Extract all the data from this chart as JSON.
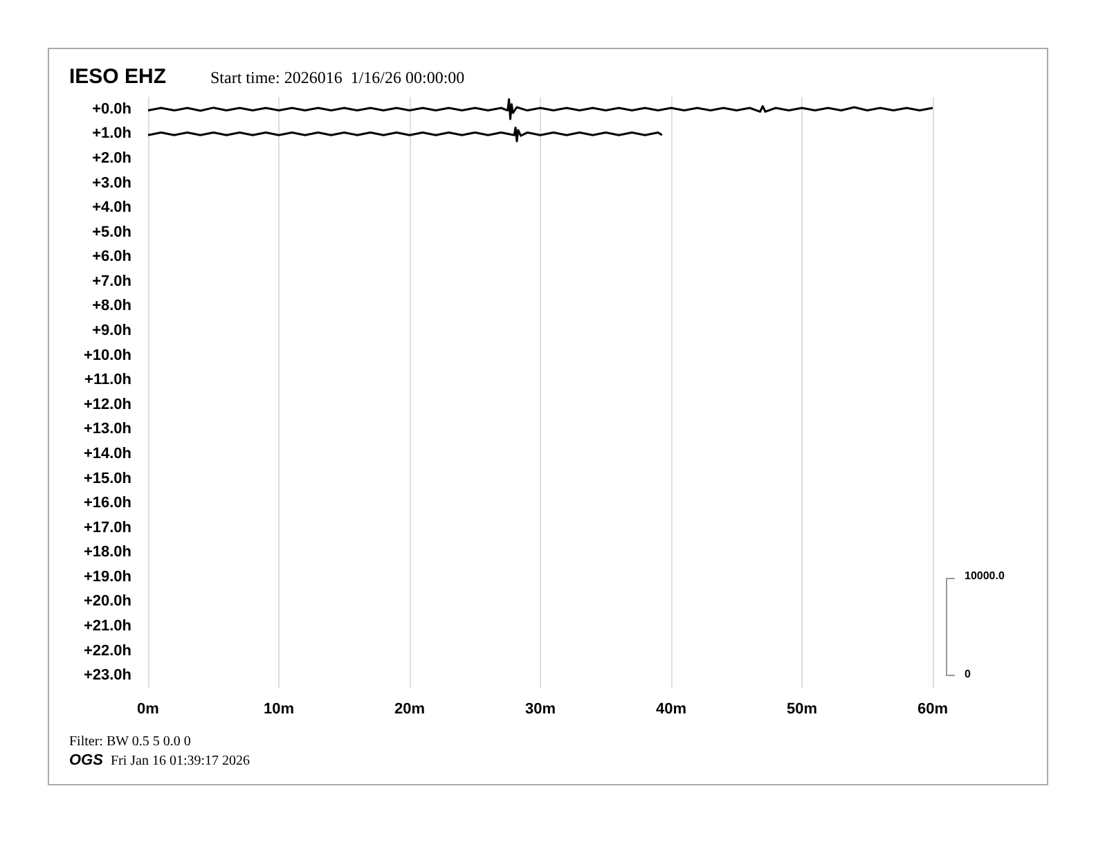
{
  "chart_data": {
    "type": "line",
    "title": "IESO EHZ",
    "subtitle": "Start time: 2026016  1/16/26 00:00:00",
    "xlim": [
      0,
      60
    ],
    "xticks": [
      {
        "value": 0,
        "label": "0m"
      },
      {
        "value": 10,
        "label": "10m"
      },
      {
        "value": 20,
        "label": "20m"
      },
      {
        "value": 30,
        "label": "30m"
      },
      {
        "value": 40,
        "label": "40m"
      },
      {
        "value": 50,
        "label": "50m"
      },
      {
        "value": 60,
        "label": "60m"
      }
    ],
    "ylim": [
      23.5,
      -0.5
    ],
    "yticks": [
      {
        "value": 0,
        "label": "+0.0h"
      },
      {
        "value": 1,
        "label": "+1.0h"
      },
      {
        "value": 2,
        "label": "+2.0h"
      },
      {
        "value": 3,
        "label": "+3.0h"
      },
      {
        "value": 4,
        "label": "+4.0h"
      },
      {
        "value": 5,
        "label": "+5.0h"
      },
      {
        "value": 6,
        "label": "+6.0h"
      },
      {
        "value": 7,
        "label": "+7.0h"
      },
      {
        "value": 8,
        "label": "+8.0h"
      },
      {
        "value": 9,
        "label": "+9.0h"
      },
      {
        "value": 10,
        "label": "+10.0h"
      },
      {
        "value": 11,
        "label": "+11.0h"
      },
      {
        "value": 12,
        "label": "+12.0h"
      },
      {
        "value": 13,
        "label": "+13.0h"
      },
      {
        "value": 14,
        "label": "+14.0h"
      },
      {
        "value": 15,
        "label": "+15.0h"
      },
      {
        "value": 16,
        "label": "+16.0h"
      },
      {
        "value": 17,
        "label": "+17.0h"
      },
      {
        "value": 18,
        "label": "+18.0h"
      },
      {
        "value": 19,
        "label": "+19.0h"
      },
      {
        "value": 20,
        "label": "+20.0h"
      },
      {
        "value": 21,
        "label": "+21.0h"
      },
      {
        "value": 22,
        "label": "+22.0h"
      },
      {
        "value": 23,
        "label": "+23.0h"
      }
    ],
    "series": [
      {
        "color": "#000000",
        "x": [
          0,
          1,
          2,
          3,
          4,
          5,
          6,
          7,
          8,
          9,
          10,
          11,
          12,
          13,
          14,
          15,
          16,
          17,
          18,
          19,
          20,
          21,
          22,
          23,
          24,
          25,
          26,
          27,
          27.5,
          27.6,
          27.7,
          27.8,
          27.9,
          28.2,
          29,
          30,
          31,
          32,
          33,
          34,
          35,
          36,
          37,
          38,
          39,
          40,
          41,
          42,
          43,
          44,
          45,
          46,
          46.8,
          47,
          47.2,
          48,
          49,
          50,
          51,
          52,
          53,
          54,
          55,
          56,
          57,
          58,
          59,
          60
        ],
        "values": [
          0.05,
          -0.05,
          0.05,
          -0.05,
          0.06,
          -0.06,
          0.05,
          -0.05,
          0.05,
          -0.05,
          0.05,
          -0.05,
          0.05,
          -0.05,
          0.05,
          -0.05,
          0.05,
          -0.05,
          0.05,
          -0.05,
          0.05,
          -0.05,
          0.05,
          -0.05,
          0.05,
          -0.05,
          0.05,
          -0.05,
          0.05,
          -0.4,
          0.4,
          -0.2,
          0.15,
          -0.08,
          0.05,
          -0.05,
          0.05,
          -0.05,
          0.05,
          -0.05,
          0.05,
          -0.05,
          0.05,
          -0.05,
          0.05,
          -0.05,
          0.05,
          -0.05,
          0.05,
          -0.05,
          0.05,
          -0.05,
          0.1,
          -0.12,
          0.1,
          -0.05,
          0.05,
          -0.05,
          0.05,
          -0.05,
          0.05,
          -0.08,
          0.05,
          -0.05,
          0.05,
          -0.05,
          0.05,
          -0.05
        ]
      },
      {
        "color": "#000000",
        "x": [
          0,
          1,
          2,
          3,
          4,
          5,
          6,
          7,
          8,
          9,
          10,
          11,
          12,
          13,
          14,
          15,
          16,
          17,
          18,
          19,
          20,
          21,
          22,
          23,
          24,
          25,
          26,
          27,
          28,
          28.1,
          28.2,
          28.3,
          28.5,
          29,
          30,
          31,
          32,
          33,
          34,
          35,
          36,
          37,
          38,
          39,
          39.3
        ],
        "values": [
          1.05,
          0.95,
          1.05,
          0.95,
          1.05,
          0.95,
          1.05,
          0.95,
          1.05,
          0.95,
          1.05,
          0.95,
          1.05,
          0.95,
          1.05,
          0.95,
          1.05,
          0.95,
          1.05,
          0.95,
          1.05,
          0.95,
          1.05,
          0.95,
          1.05,
          0.95,
          1.05,
          0.95,
          1.05,
          0.75,
          1.3,
          0.85,
          1.08,
          0.95,
          1.05,
          0.95,
          1.05,
          0.95,
          1.05,
          0.95,
          1.05,
          0.95,
          1.05,
          0.95,
          1.05
        ]
      }
    ],
    "grid": "x",
    "marker": "none",
    "line_style": "solid",
    "annotations": [
      "10000.0",
      "0",
      "Filter: BW 0.5 5 0.0 0",
      "OGS",
      "Fri Jan 16 01:39:17 2026"
    ]
  }
}
